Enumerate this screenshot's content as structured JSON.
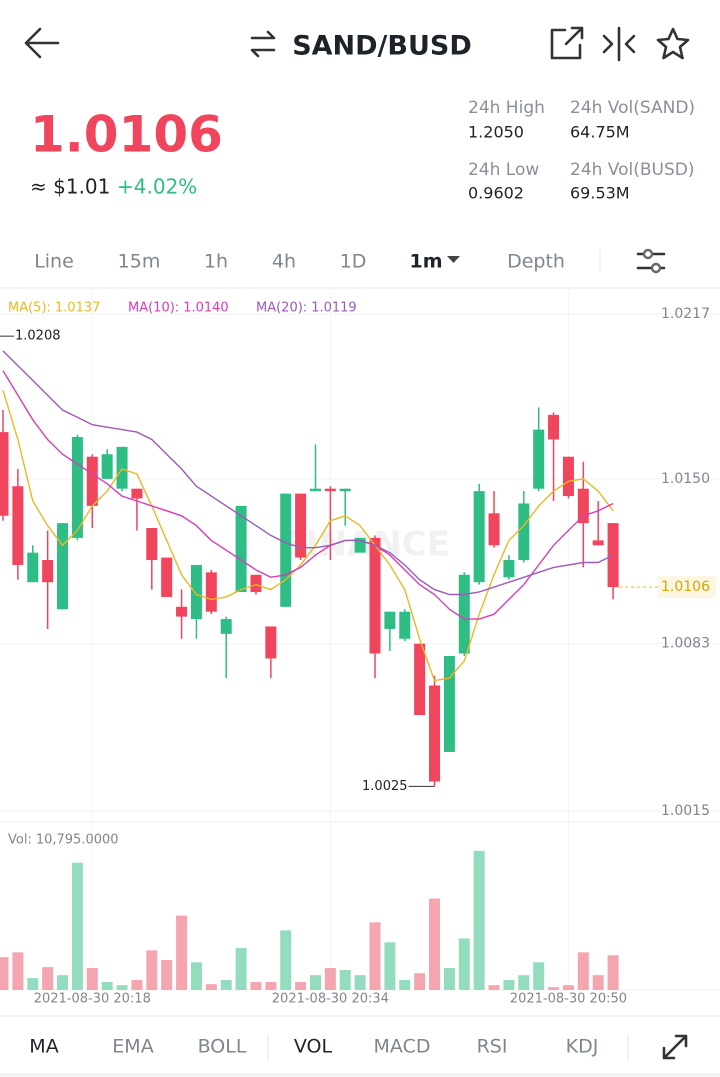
{
  "header": {
    "pair": "SAND/BUSD"
  },
  "ticker": {
    "price": "1.0106",
    "usd": "≈ $1.01",
    "change": "+4.02%"
  },
  "stats": [
    {
      "label": "24h High",
      "value": "1.2050"
    },
    {
      "label": "24h Vol(SAND)",
      "value": "64.75M"
    },
    {
      "label": "24h Low",
      "value": "0.9602"
    },
    {
      "label": "24h Vol(BUSD)",
      "value": "69.53M"
    }
  ],
  "intervals": [
    "Line",
    "15m",
    "1h",
    "4h",
    "1D",
    "1m",
    "Depth"
  ],
  "active_interval": 5,
  "indicators": [
    "MA",
    "EMA",
    "BOLL",
    "VOL",
    "MACD",
    "RSI",
    "KDJ"
  ],
  "active_indicators": [
    0,
    3
  ],
  "chart_data": {
    "type": "candlestick",
    "watermark": "BINANCE",
    "categories": [
      null,
      null,
      null,
      null,
      null,
      null,
      "2021-08-30 20:18",
      null,
      null,
      null,
      null,
      null,
      null,
      null,
      null,
      null,
      null,
      null,
      null,
      null,
      null,
      null,
      "2021-08-30 20:34",
      null,
      null,
      null,
      null,
      null,
      null,
      null,
      null,
      null,
      null,
      null,
      null,
      null,
      null,
      null,
      "2021-08-30 20:50",
      null,
      null,
      null
    ],
    "open": [
      1.0169,
      1.0147,
      1.0108,
      1.0117,
      1.0097,
      1.0126,
      1.0159,
      1.015,
      1.0146,
      1.0146,
      1.013,
      1.0118,
      1.0098,
      1.0093,
      1.0112,
      1.0087,
      1.0104,
      1.0111,
      1.009,
      1.0098,
      1.0144,
      1.0145,
      1.0146,
      1.0145,
      1.012,
      1.0126,
      1.0089,
      1.0085,
      1.0083,
      1.0066,
      1.0039,
      1.0079,
      1.0108,
      1.0136,
      1.011,
      1.0117,
      1.0146,
      1.0176,
      1.0159,
      1.0146,
      1.0125,
      1.0132
    ],
    "high": [
      1.0178,
      1.0154,
      1.0123,
      1.0129,
      1.0132,
      1.0168,
      1.016,
      1.0162,
      1.0163,
      1.0146,
      1.013,
      1.0118,
      1.0105,
      1.0115,
      1.0113,
      1.0094,
      1.0139,
      1.0111,
      1.009,
      1.0144,
      1.0144,
      1.0164,
      1.0147,
      1.0146,
      1.0126,
      1.0127,
      1.0096,
      1.0097,
      1.0083,
      1.007,
      1.0078,
      1.0112,
      1.0148,
      1.0145,
      1.0119,
      1.0145,
      1.0179,
      1.0177,
      1.0159,
      1.0157,
      1.0141,
      1.0132
    ],
    "low": [
      1.0133,
      1.0109,
      1.0108,
      1.0089,
      1.0097,
      1.0125,
      1.013,
      1.015,
      1.0145,
      1.0129,
      1.0105,
      1.0102,
      1.0085,
      1.0085,
      1.0095,
      1.0069,
      1.0104,
      1.0103,
      1.0069,
      1.0098,
      1.0117,
      1.0145,
      1.0117,
      1.0131,
      1.012,
      1.0069,
      1.008,
      1.0084,
      1.0054,
      1.0025,
      1.0039,
      1.0078,
      1.0107,
      1.0122,
      1.0109,
      1.0116,
      1.0145,
      1.0141,
      1.0142,
      1.0114,
      1.0123,
      1.0101
    ],
    "close": [
      1.0135,
      1.0115,
      1.012,
      1.0108,
      1.0132,
      1.0167,
      1.0139,
      1.016,
      1.0163,
      1.0142,
      1.0117,
      1.0102,
      1.0094,
      1.0115,
      1.0096,
      1.0093,
      1.0139,
      1.0104,
      1.0077,
      1.0144,
      1.0118,
      1.0146,
      1.0145,
      1.0146,
      1.0126,
      1.0079,
      1.0096,
      1.0096,
      1.0054,
      1.0027,
      1.0078,
      1.0111,
      1.0145,
      1.0123,
      1.0117,
      1.014,
      1.017,
      1.0166,
      1.0143,
      1.0132,
      1.0123,
      1.0106
    ],
    "ylim": [
      1.0015,
      1.0217
    ],
    "yticks": [
      1.0217,
      {
        "value": 1.015,
        "label": "1.0150"
      },
      1.0083,
      1.0015
    ],
    "high_marker": 1.0208,
    "up_color": "#2ebd85",
    "down_color": "#f0455c",
    "ma_series": [
      {
        "name": "MA(5):",
        "color": "#e9b824",
        "values": [
          1.0186,
          1.0166,
          1.0141,
          1.0131,
          1.0123,
          1.0129,
          1.0139,
          1.0145,
          1.0154,
          1.0152,
          1.0139,
          1.0125,
          1.0111,
          1.0103,
          1.0101,
          1.0102,
          1.0105,
          1.0107,
          1.0105,
          1.0109,
          1.0115,
          1.0123,
          1.0133,
          1.0135,
          1.0131,
          1.0123,
          1.0115,
          1.0105,
          1.0085,
          1.0068,
          1.0069,
          1.0076,
          1.0095,
          1.0111,
          1.0125,
          1.0131,
          1.0139,
          1.0145,
          1.0149,
          1.015,
          1.0145,
          1.0137
        ],
        "value_labels": [
          null,
          null,
          null,
          null,
          null,
          null,
          null,
          null,
          null,
          null,
          null,
          null,
          null,
          null,
          null,
          null,
          null,
          null,
          null,
          null,
          null,
          null,
          null,
          null,
          null,
          null,
          null,
          null,
          null,
          null,
          null,
          null,
          null,
          null,
          null,
          null,
          null,
          null,
          null,
          null,
          null,
          "1.0137"
        ]
      },
      {
        "name": "MA(10):",
        "color": "#d63fb8",
        "values": [
          1.0194,
          1.0184,
          1.0174,
          1.0166,
          1.016,
          1.0156,
          1.0152,
          1.0148,
          1.0143,
          1.0141,
          1.0139,
          1.0137,
          1.0135,
          1.0131,
          1.0125,
          1.0121,
          1.0117,
          1.0113,
          1.011,
          1.0111,
          1.0114,
          1.0119,
          1.0123,
          1.0125,
          1.0125,
          1.0123,
          1.0119,
          1.0113,
          1.0107,
          1.0103,
          1.0097,
          1.0093,
          1.0093,
          1.0095,
          1.0101,
          1.0107,
          1.0115,
          1.0123,
          1.0129,
          1.0135,
          1.0137,
          1.014
        ],
        "value_labels": [
          null,
          null,
          null,
          null,
          null,
          null,
          null,
          null,
          null,
          null,
          null,
          null,
          null,
          null,
          null,
          null,
          null,
          null,
          null,
          null,
          null,
          null,
          null,
          null,
          null,
          null,
          null,
          null,
          null,
          null,
          null,
          null,
          null,
          null,
          null,
          null,
          null,
          null,
          null,
          null,
          null,
          "1.0140"
        ]
      },
      {
        "name": "MA(20):",
        "color": "#9c5bb8",
        "values": [
          1.0202,
          1.0196,
          1.019,
          1.0184,
          1.0178,
          1.0175,
          1.0172,
          1.0171,
          1.017,
          1.0169,
          1.0166,
          1.016,
          1.0154,
          1.0147,
          1.0143,
          1.0139,
          1.0135,
          1.0131,
          1.0127,
          1.0124,
          1.0122,
          1.0122,
          1.0123,
          1.0125,
          1.0125,
          1.0123,
          1.012,
          1.0115,
          1.0109,
          1.0105,
          1.0103,
          1.0103,
          1.0104,
          1.0106,
          1.0108,
          1.011,
          1.0112,
          1.0114,
          1.0115,
          1.0116,
          1.0116,
          1.0119
        ],
        "value_labels": [
          null,
          null,
          null,
          null,
          null,
          null,
          null,
          null,
          null,
          null,
          null,
          null,
          null,
          null,
          null,
          null,
          null,
          null,
          null,
          null,
          null,
          null,
          null,
          null,
          null,
          null,
          null,
          null,
          null,
          null,
          null,
          null,
          null,
          null,
          null,
          null,
          null,
          null,
          null,
          null,
          null,
          "1.0119"
        ]
      }
    ],
    "volume_title": "Vol:",
    "volumes": [
      10200,
      11700,
      3700,
      7100,
      4600,
      39500,
      6800,
      2500,
      1500,
      3100,
      12300,
      9300,
      23100,
      8600,
      1800,
      3100,
      13000,
      2500,
      2500,
      18500,
      2500,
      4600,
      6800,
      6200,
      4600,
      21000,
      14800,
      3100,
      5200,
      28400,
      6800,
      16000,
      43200,
      1500,
      3100,
      4600,
      8600,
      900,
      1500,
      11700,
      4600,
      10795
    ],
    "volume_value_labels": [
      null,
      null,
      null,
      null,
      null,
      null,
      null,
      null,
      null,
      null,
      null,
      null,
      null,
      null,
      null,
      null,
      null,
      null,
      null,
      null,
      null,
      null,
      null,
      null,
      null,
      null,
      null,
      null,
      null,
      null,
      null,
      null,
      null,
      null,
      null,
      null,
      null,
      null,
      null,
      null,
      null,
      "10,795.0000"
    ],
    "volume_ylim": [
      0,
      45000
    ],
    "volume_up_color": "#93dcbe",
    "volume_down_color": "#f5a5b0"
  }
}
